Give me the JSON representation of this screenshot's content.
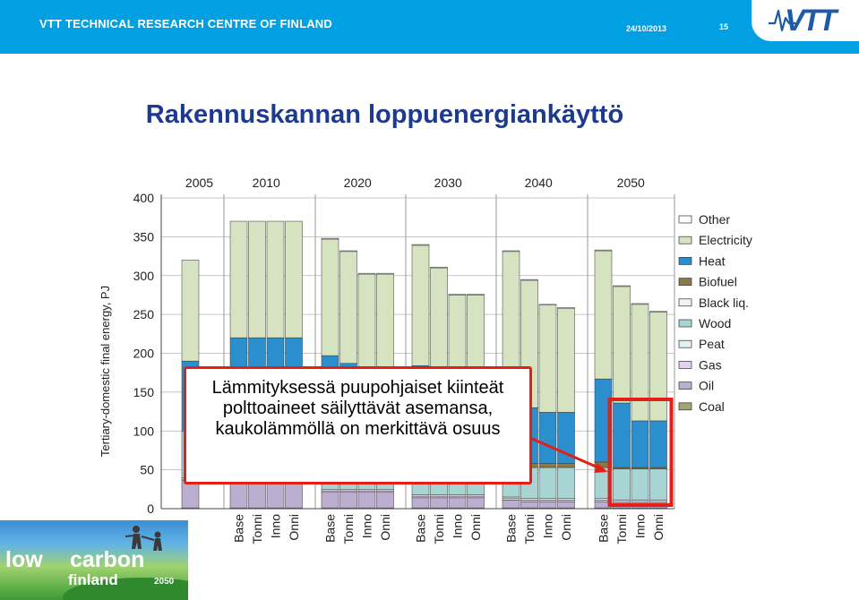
{
  "header": {
    "organization": "VTT TECHNICAL RESEARCH CENTRE OF FINLAND",
    "date": "24/10/2013",
    "page_number": "15",
    "logo_text": "VTT",
    "accent_color": "#00a0e3"
  },
  "slide": {
    "title": "Rakennuskannan loppuenergiankäyttö"
  },
  "callout": {
    "text": "Lämmityksessä puupohjaiset kiinteät polttoaineet säilyttävät asemansa, kaukolämmöllä on merkittävä osuus",
    "border_color": "#e32018"
  },
  "footer_logo": {
    "line1_a": "low",
    "line1_b": "carbon",
    "line2": "finland",
    "year": "2050"
  },
  "chart_data": {
    "type": "bar",
    "stacked": true,
    "title": "",
    "xlabel": "",
    "ylabel": "Tertiary-domestic final energy, PJ",
    "ylim": [
      0,
      400
    ],
    "yticks": [
      0,
      50,
      100,
      150,
      200,
      250,
      300,
      350,
      400
    ],
    "grid": true,
    "legend_position": "right",
    "groups": [
      {
        "label": "2005",
        "bars": [
          0
        ]
      },
      {
        "label": "2010",
        "bars": [
          1,
          2,
          3,
          4
        ]
      },
      {
        "label": "2020",
        "bars": [
          5,
          6,
          7,
          8
        ]
      },
      {
        "label": "2030",
        "bars": [
          9,
          10,
          11,
          12
        ]
      },
      {
        "label": "2040",
        "bars": [
          13,
          14,
          15,
          16
        ]
      },
      {
        "label": "2050",
        "bars": [
          17,
          18,
          19,
          20
        ]
      }
    ],
    "categories": [
      "",
      "Base",
      "Tonni",
      "Inno",
      "Onni",
      "Base",
      "Tonni",
      "Inno",
      "Onni",
      "Base",
      "Tonni",
      "Inno",
      "Onni",
      "Base",
      "Tonni",
      "Inno",
      "Onni",
      "Base",
      "Tonni",
      "Inno",
      "Onni"
    ],
    "series": [
      {
        "name": "Coal",
        "color": "#a3a378",
        "values": [
          1,
          1,
          1,
          1,
          1,
          1,
          1,
          1,
          1,
          1,
          1,
          1,
          1,
          1,
          1,
          1,
          1,
          1,
          1,
          1,
          1
        ]
      },
      {
        "name": "Oil",
        "color": "#bcaed0",
        "values": [
          35,
          35,
          35,
          35,
          35,
          20,
          20,
          20,
          20,
          13,
          13,
          13,
          13,
          10,
          8,
          8,
          8,
          8,
          6,
          6,
          6
        ]
      },
      {
        "name": "Gas",
        "color": "#e3d3ea",
        "values": [
          2,
          2,
          2,
          2,
          2,
          2,
          2,
          2,
          2,
          2,
          2,
          2,
          2,
          2,
          2,
          2,
          2,
          2,
          2,
          2,
          2
        ]
      },
      {
        "name": "Peat",
        "color": "#dff0f7",
        "values": [
          2,
          2,
          2,
          2,
          2,
          2,
          2,
          2,
          2,
          2,
          2,
          2,
          2,
          2,
          2,
          2,
          2,
          2,
          2,
          2,
          2
        ]
      },
      {
        "name": "Wood",
        "color": "#a8d4d3",
        "values": [
          60,
          55,
          55,
          55,
          55,
          48,
          48,
          48,
          48,
          42,
          42,
          42,
          42,
          40,
          40,
          40,
          40,
          40,
          40,
          40,
          40
        ]
      },
      {
        "name": "Black liq.",
        "color": "#f2f2f2",
        "values": [
          0,
          0,
          0,
          0,
          0,
          0,
          0,
          0,
          0,
          0,
          0,
          0,
          0,
          0,
          0,
          0,
          0,
          0,
          0,
          0,
          0
        ]
      },
      {
        "name": "Biofuel",
        "color": "#8c7a46",
        "values": [
          0,
          0,
          0,
          0,
          0,
          2,
          2,
          2,
          2,
          4,
          4,
          4,
          4,
          5,
          5,
          5,
          5,
          7,
          2,
          2,
          2
        ]
      },
      {
        "name": "Heat",
        "color": "#2c8fcd",
        "values": [
          90,
          125,
          125,
          125,
          125,
          122,
          112,
          105,
          105,
          120,
          106,
          86,
          86,
          78,
          72,
          66,
          66,
          107,
          83,
          60,
          60
        ]
      },
      {
        "name": "Electricity",
        "color": "#d6e3c1",
        "values": [
          130,
          150,
          150,
          150,
          150,
          150,
          144,
          122,
          122,
          155,
          140,
          125,
          125,
          193,
          164,
          138,
          134,
          165,
          150,
          150,
          140
        ]
      },
      {
        "name": "Other",
        "color": "#ffffff",
        "values": [
          0,
          0,
          0,
          0,
          0,
          1,
          1,
          1,
          1,
          1,
          1,
          1,
          1,
          1,
          1,
          1,
          1,
          1,
          1,
          1,
          1
        ]
      }
    ],
    "highlight": {
      "bars": [
        18,
        19,
        20
      ],
      "color": "#e32018"
    }
  }
}
